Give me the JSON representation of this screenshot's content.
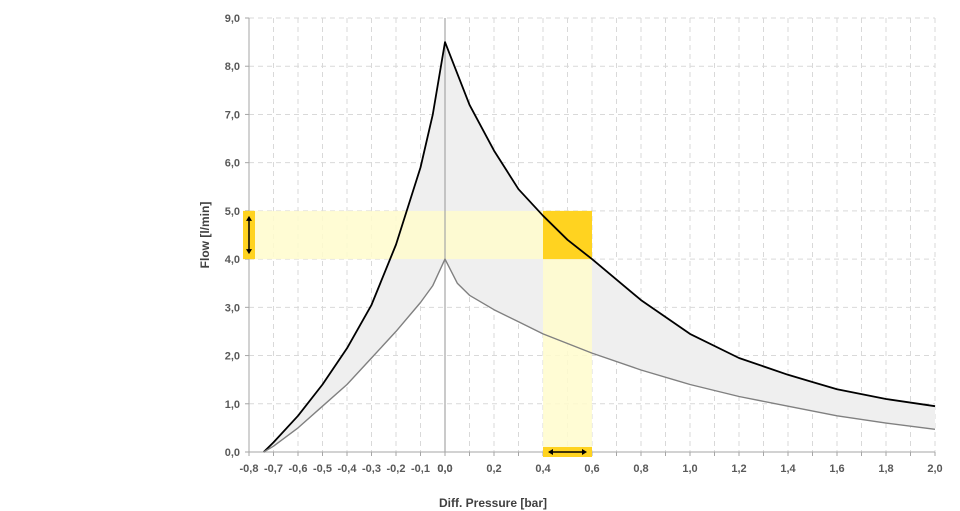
{
  "chart_data": {
    "type": "area",
    "xlabel": "Diff. Pressure [bar]",
    "ylabel": "Flow [l/min]",
    "xlim": [
      -0.8,
      2.0
    ],
    "ylim": [
      0,
      9
    ],
    "grid": true,
    "x_ticks_left": [
      "-0,8",
      "-0,7",
      "-0,6",
      "-0,5",
      "-0,4",
      "-0,3",
      "-0,2",
      "-0,1",
      "0,0"
    ],
    "x_ticks_right": [
      "0,0",
      "0,2",
      "0,4",
      "0,6",
      "0,8",
      "1,0",
      "1,2",
      "1,4",
      "1,6",
      "1,8",
      "2,0"
    ],
    "y_ticks": [
      "0,0",
      "1,0",
      "2,0",
      "3,0",
      "4,0",
      "5,0",
      "6,0",
      "7,0",
      "8,0",
      "9,0"
    ],
    "series": [
      {
        "role": "upper",
        "color": "#000000",
        "x": [
          -0.74,
          -0.7,
          -0.6,
          -0.5,
          -0.4,
          -0.3,
          -0.2,
          -0.1,
          -0.05,
          0.0,
          0.1,
          0.2,
          0.3,
          0.4,
          0.5,
          0.6,
          0.8,
          1.0,
          1.2,
          1.4,
          1.6,
          1.8,
          2.0
        ],
        "y": [
          0.0,
          0.2,
          0.75,
          1.4,
          2.15,
          3.05,
          4.3,
          5.9,
          7.0,
          8.5,
          7.2,
          6.25,
          5.45,
          4.9,
          4.4,
          4.0,
          3.15,
          2.45,
          1.95,
          1.6,
          1.3,
          1.1,
          0.95
        ]
      },
      {
        "role": "lower",
        "color": "#808080",
        "x": [
          -0.74,
          -0.7,
          -0.6,
          -0.5,
          -0.4,
          -0.3,
          -0.2,
          -0.1,
          -0.05,
          0.0,
          0.05,
          0.1,
          0.2,
          0.3,
          0.4,
          0.5,
          0.6,
          0.8,
          1.0,
          1.2,
          1.4,
          1.6,
          1.8,
          2.0
        ],
        "y": [
          0.0,
          0.12,
          0.5,
          0.95,
          1.4,
          1.95,
          2.5,
          3.1,
          3.45,
          4.0,
          3.5,
          3.25,
          2.95,
          2.7,
          2.45,
          2.25,
          2.05,
          1.7,
          1.4,
          1.15,
          0.95,
          0.75,
          0.6,
          0.47
        ]
      }
    ],
    "highlights": {
      "flow_band": [
        4.0,
        5.0
      ],
      "pressure_band": [
        0.4,
        0.6
      ],
      "band_color": "#FFFBCC",
      "marker_color": "#FFD320"
    }
  }
}
